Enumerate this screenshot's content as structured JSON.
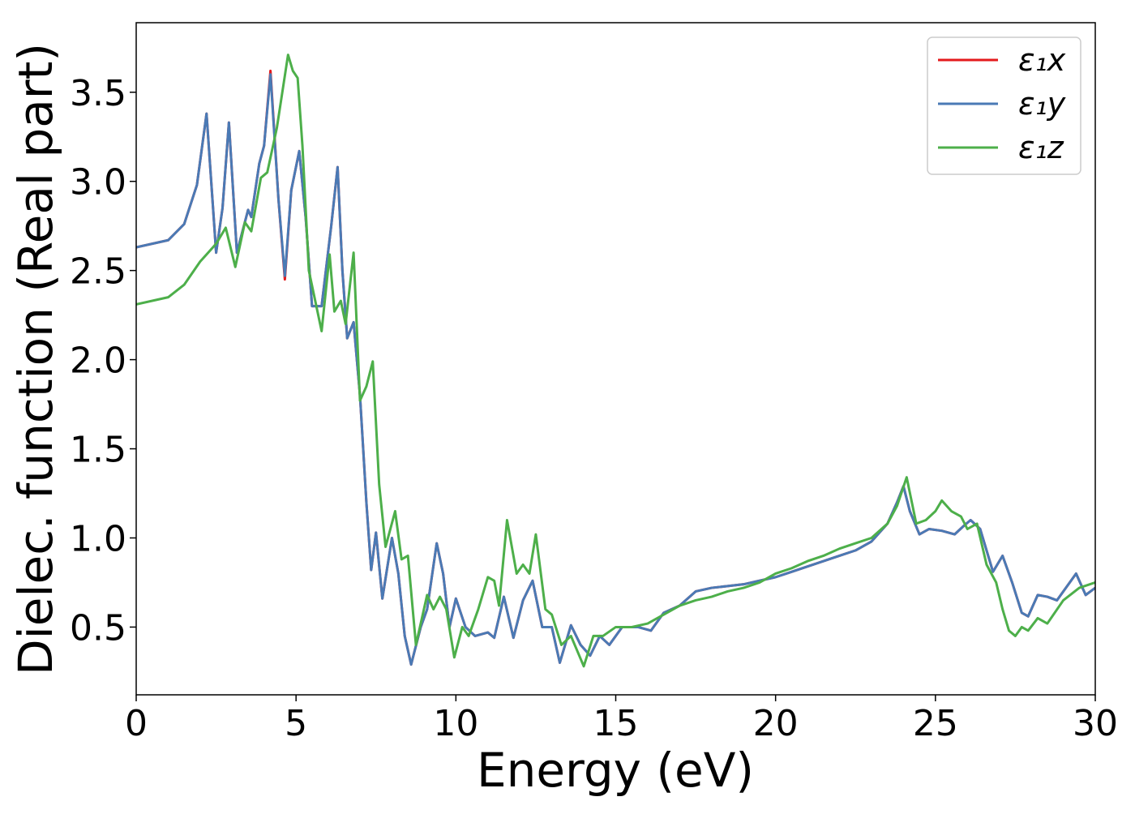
{
  "chart_data": {
    "type": "line",
    "xlabel": "Energy (eV)",
    "ylabel": "Dielec. function (Real part)",
    "xlim": [
      0,
      30
    ],
    "xticks": [
      0,
      5,
      10,
      15,
      20,
      25,
      30
    ],
    "ylim": [
      0.12,
      3.89
    ],
    "yticks": [
      0.5,
      {
        "value": 1,
        "label": "1.0"
      },
      1.5,
      {
        "value": 2,
        "label": "2.0"
      },
      2.5,
      {
        "value": 3,
        "label": "3.0"
      },
      3.5
    ],
    "grid": false,
    "legend": "upper right",
    "series": [
      {
        "name": "ε₁x",
        "color": "#e41a1c",
        "x": [
          0,
          1,
          1.5,
          1.9,
          2.2,
          2.5,
          2.7,
          2.9,
          3.15,
          3.5,
          3.6,
          3.85,
          4.0,
          4.2,
          4.45,
          4.65,
          4.85,
          5.1,
          5.3,
          5.5,
          5.8,
          6.1,
          6.3,
          6.45,
          6.6,
          6.8,
          7.0,
          7.2,
          7.35,
          7.5,
          7.7,
          8.0,
          8.2,
          8.4,
          8.6,
          8.9,
          9.1,
          9.4,
          9.6,
          9.8,
          10.0,
          10.3,
          10.6,
          11.0,
          11.2,
          11.5,
          11.8,
          12.1,
          12.4,
          12.7,
          13.0,
          13.25,
          13.6,
          13.9,
          14.2,
          14.5,
          14.8,
          15.2,
          15.7,
          16.1,
          16.5,
          17.0,
          17.5,
          18.0,
          18.5,
          19.0,
          19.5,
          20.0,
          20.5,
          21.0,
          21.5,
          22.0,
          22.5,
          23.0,
          23.5,
          23.8,
          24.0,
          24.2,
          24.5,
          24.8,
          25.2,
          25.6,
          25.9,
          26.1,
          26.4,
          26.8,
          27.1,
          27.4,
          27.7,
          27.9,
          28.2,
          28.5,
          28.8,
          29.4,
          29.7,
          30
        ],
        "values": [
          2.63,
          2.67,
          2.76,
          2.98,
          3.38,
          2.6,
          2.85,
          3.33,
          2.6,
          2.84,
          2.8,
          3.1,
          3.2,
          3.62,
          2.9,
          2.45,
          2.95,
          3.17,
          2.8,
          2.3,
          2.3,
          2.75,
          3.08,
          2.5,
          2.12,
          2.21,
          1.8,
          1.2,
          0.82,
          1.03,
          0.66,
          1.0,
          0.8,
          0.45,
          0.29,
          0.5,
          0.6,
          0.97,
          0.8,
          0.5,
          0.66,
          0.5,
          0.45,
          0.47,
          0.44,
          0.67,
          0.44,
          0.65,
          0.76,
          0.5,
          0.5,
          0.3,
          0.51,
          0.4,
          0.34,
          0.45,
          0.4,
          0.5,
          0.5,
          0.48,
          0.58,
          0.62,
          0.7,
          0.72,
          0.73,
          0.74,
          0.76,
          0.78,
          0.81,
          0.84,
          0.87,
          0.9,
          0.93,
          0.98,
          1.08,
          1.2,
          1.29,
          1.15,
          1.02,
          1.05,
          1.04,
          1.02,
          1.07,
          1.1,
          1.05,
          0.81,
          0.9,
          0.75,
          0.58,
          0.56,
          0.68,
          0.67,
          0.65,
          0.8,
          0.68,
          0.72
        ]
      },
      {
        "name": "ε₁y",
        "color": "#4a7ab5",
        "x": [
          0,
          1,
          1.5,
          1.9,
          2.2,
          2.5,
          2.7,
          2.9,
          3.15,
          3.5,
          3.6,
          3.85,
          4.0,
          4.2,
          4.45,
          4.65,
          4.85,
          5.1,
          5.3,
          5.5,
          5.8,
          6.1,
          6.3,
          6.45,
          6.6,
          6.8,
          7.0,
          7.2,
          7.35,
          7.5,
          7.7,
          8.0,
          8.2,
          8.4,
          8.6,
          8.9,
          9.1,
          9.4,
          9.6,
          9.8,
          10.0,
          10.3,
          10.6,
          11.0,
          11.2,
          11.5,
          11.8,
          12.1,
          12.4,
          12.7,
          13.0,
          13.25,
          13.6,
          13.9,
          14.2,
          14.5,
          14.8,
          15.2,
          15.7,
          16.1,
          16.5,
          17.0,
          17.5,
          18.0,
          18.5,
          19.0,
          19.5,
          20.0,
          20.5,
          21.0,
          21.5,
          22.0,
          22.5,
          23.0,
          23.5,
          23.8,
          24.0,
          24.2,
          24.5,
          24.8,
          25.2,
          25.6,
          25.9,
          26.1,
          26.4,
          26.8,
          27.1,
          27.4,
          27.7,
          27.9,
          28.2,
          28.5,
          28.8,
          29.4,
          29.7,
          30
        ],
        "values": [
          2.63,
          2.67,
          2.76,
          2.98,
          3.38,
          2.6,
          2.85,
          3.33,
          2.6,
          2.84,
          2.8,
          3.1,
          3.2,
          3.6,
          2.9,
          2.47,
          2.95,
          3.17,
          2.8,
          2.3,
          2.3,
          2.75,
          3.08,
          2.5,
          2.12,
          2.21,
          1.8,
          1.2,
          0.82,
          1.03,
          0.66,
          1.0,
          0.8,
          0.45,
          0.29,
          0.5,
          0.6,
          0.97,
          0.8,
          0.5,
          0.66,
          0.5,
          0.45,
          0.47,
          0.44,
          0.67,
          0.44,
          0.65,
          0.76,
          0.5,
          0.5,
          0.3,
          0.51,
          0.4,
          0.34,
          0.45,
          0.4,
          0.5,
          0.5,
          0.48,
          0.58,
          0.62,
          0.7,
          0.72,
          0.73,
          0.74,
          0.76,
          0.78,
          0.81,
          0.84,
          0.87,
          0.9,
          0.93,
          0.98,
          1.08,
          1.2,
          1.29,
          1.15,
          1.02,
          1.05,
          1.04,
          1.02,
          1.07,
          1.1,
          1.05,
          0.81,
          0.9,
          0.75,
          0.58,
          0.56,
          0.68,
          0.67,
          0.65,
          0.8,
          0.68,
          0.72
        ]
      },
      {
        "name": "ε₁z",
        "color": "#4daf4a",
        "x": [
          0,
          1,
          1.5,
          2,
          2.5,
          2.8,
          3.1,
          3.4,
          3.6,
          3.9,
          4.1,
          4.4,
          4.75,
          4.9,
          5.05,
          5.2,
          5.4,
          5.8,
          6.05,
          6.2,
          6.4,
          6.55,
          6.8,
          7.0,
          7.2,
          7.4,
          7.6,
          7.8,
          8.1,
          8.3,
          8.5,
          8.75,
          9.1,
          9.3,
          9.5,
          9.7,
          9.95,
          10.2,
          10.4,
          10.7,
          11.0,
          11.2,
          11.35,
          11.6,
          11.9,
          12.1,
          12.3,
          12.5,
          12.8,
          13.0,
          13.3,
          13.6,
          14.0,
          14.3,
          14.6,
          15.0,
          15.5,
          16.0,
          16.5,
          17.0,
          17.5,
          18.0,
          18.5,
          19.0,
          19.5,
          20.0,
          20.5,
          21.0,
          21.5,
          22.0,
          22.5,
          23.0,
          23.5,
          23.8,
          24.1,
          24.4,
          24.7,
          25.0,
          25.2,
          25.5,
          25.8,
          26.0,
          26.3,
          26.6,
          26.9,
          27.1,
          27.3,
          27.5,
          27.7,
          27.9,
          28.2,
          28.5,
          29.0,
          29.5,
          30
        ],
        "values": [
          2.31,
          2.35,
          2.42,
          2.55,
          2.65,
          2.74,
          2.52,
          2.77,
          2.72,
          3.02,
          3.05,
          3.3,
          3.71,
          3.62,
          3.58,
          3.2,
          2.5,
          2.16,
          2.59,
          2.27,
          2.33,
          2.2,
          2.6,
          1.77,
          1.85,
          1.99,
          1.3,
          0.95,
          1.15,
          0.88,
          0.9,
          0.4,
          0.68,
          0.6,
          0.67,
          0.6,
          0.33,
          0.5,
          0.45,
          0.6,
          0.78,
          0.76,
          0.62,
          1.1,
          0.8,
          0.85,
          0.8,
          1.02,
          0.6,
          0.57,
          0.4,
          0.45,
          0.28,
          0.45,
          0.45,
          0.5,
          0.5,
          0.52,
          0.57,
          0.62,
          0.65,
          0.67,
          0.7,
          0.72,
          0.75,
          0.8,
          0.83,
          0.87,
          0.9,
          0.94,
          0.97,
          1.0,
          1.08,
          1.18,
          1.34,
          1.08,
          1.1,
          1.15,
          1.21,
          1.15,
          1.12,
          1.05,
          1.08,
          0.85,
          0.75,
          0.6,
          0.48,
          0.45,
          0.5,
          0.48,
          0.55,
          0.52,
          0.65,
          0.72,
          0.75
        ]
      }
    ]
  }
}
